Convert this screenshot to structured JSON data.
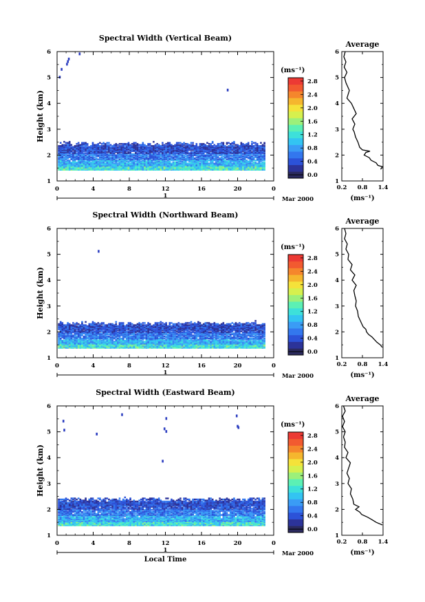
{
  "chart_data": {
    "type": "heatmap",
    "xlabel": "Local Time",
    "date_label": "Mar 2000",
    "day_label": "1",
    "x_ticks": [
      "0",
      "4",
      "8",
      "12",
      "16",
      "20",
      "0"
    ],
    "xlim": [
      0,
      24
    ],
    "y_ticks": [
      "1",
      "2",
      "3",
      "4",
      "5",
      "6"
    ],
    "ylim": [
      1,
      6
    ],
    "ylabel": "Height (km)",
    "colorbar": {
      "unit": "(ms⁻¹)",
      "ticks": [
        "0.0",
        "0.4",
        "0.8",
        "1.2",
        "1.6",
        "2.0",
        "2.4",
        "2.8"
      ],
      "range": [
        0,
        3.0
      ],
      "colors": [
        "#2b2a5e",
        "#2c3399",
        "#2c52d8",
        "#3377ee",
        "#3a9cf5",
        "#33c4f2",
        "#3de0da",
        "#5cf0b4",
        "#9cf07a",
        "#d6f04e",
        "#f5e23a",
        "#f5b62e",
        "#f5862c",
        "#f25a30",
        "#ec3a34"
      ]
    },
    "panels": [
      {
        "title": "Spectral Width (Vertical Beam)",
        "layer_top_km": 2.45,
        "layer_base_km": 1.4,
        "sparse_points": [
          [
            0.2,
            5.0
          ],
          [
            0.4,
            5.3
          ],
          [
            1.0,
            5.5
          ],
          [
            1.1,
            5.6
          ],
          [
            1.2,
            5.7
          ],
          [
            2.4,
            5.9
          ],
          [
            18.8,
            4.5
          ]
        ],
        "profile": {
          "title": "Average",
          "xlabel": "(ms⁻¹)",
          "x_ticks": [
            "0.2",
            "0.8",
            "1.4"
          ],
          "xlim": [
            0.2,
            1.4
          ],
          "y_ticks": [
            "1",
            "2",
            "3",
            "4",
            "5",
            "6"
          ],
          "height_km": [
            1.45,
            1.55,
            1.6,
            1.7,
            1.8,
            1.9,
            2.0,
            2.1,
            2.15,
            2.2,
            2.3,
            2.5,
            2.7,
            2.9,
            3.0,
            3.2,
            3.4,
            3.6,
            3.8,
            4.0,
            4.2,
            4.5,
            4.8,
            5.0,
            5.2,
            5.4,
            5.6,
            5.8,
            6.0
          ],
          "value": [
            1.33,
            1.38,
            1.25,
            1.2,
            1.05,
            1.0,
            0.85,
            0.9,
            1.02,
            0.8,
            0.72,
            0.67,
            0.6,
            0.56,
            0.52,
            0.58,
            0.5,
            0.62,
            0.55,
            0.48,
            0.35,
            0.42,
            0.32,
            0.28,
            0.35,
            0.27,
            0.32,
            0.26,
            0.3
          ]
        }
      },
      {
        "title": "Spectral Width (Northward Beam)",
        "layer_top_km": 2.35,
        "layer_base_km": 1.35,
        "sparse_points": [
          [
            4.5,
            5.1
          ]
        ],
        "profile": {
          "title": "Average",
          "xlabel": "(ms⁻¹)",
          "x_ticks": [
            "0.2",
            "0.8",
            "1.4"
          ],
          "xlim": [
            0.2,
            1.4
          ],
          "y_ticks": [
            "1",
            "2",
            "3",
            "4",
            "5",
            "6"
          ],
          "height_km": [
            1.4,
            1.5,
            1.6,
            1.7,
            1.8,
            1.9,
            2.0,
            2.1,
            2.2,
            2.4,
            2.6,
            2.8,
            3.0,
            3.2,
            3.4,
            3.6,
            3.8,
            4.0,
            4.2,
            4.4,
            4.6,
            4.8,
            5.0,
            5.2,
            5.4,
            5.6,
            5.8,
            6.0
          ],
          "value": [
            1.38,
            1.32,
            1.22,
            1.15,
            1.08,
            0.98,
            0.92,
            0.9,
            0.82,
            0.75,
            0.68,
            0.66,
            0.6,
            0.62,
            0.58,
            0.55,
            0.62,
            0.5,
            0.58,
            0.45,
            0.5,
            0.38,
            0.4,
            0.32,
            0.36,
            0.28,
            0.32,
            0.28
          ]
        }
      },
      {
        "title": "Spectral Width (Eastward Beam)",
        "layer_top_km": 2.4,
        "layer_base_km": 1.35,
        "sparse_points": [
          [
            0.6,
            5.4
          ],
          [
            0.7,
            5.05
          ],
          [
            4.3,
            4.9
          ],
          [
            7.1,
            5.65
          ],
          [
            11.6,
            3.85
          ],
          [
            11.8,
            5.1
          ],
          [
            12.0,
            5.0
          ],
          [
            12.0,
            5.5
          ],
          [
            19.8,
            5.6
          ],
          [
            19.9,
            5.2
          ],
          [
            20.0,
            5.15
          ]
        ],
        "profile": {
          "title": "Average",
          "xlabel": "(ms⁻¹)",
          "x_ticks": [
            "0.2",
            "0.8",
            "1.4"
          ],
          "xlim": [
            0.2,
            1.4
          ],
          "y_ticks": [
            "1",
            "2",
            "3",
            "4",
            "5",
            "6"
          ],
          "height_km": [
            1.4,
            1.5,
            1.6,
            1.7,
            1.8,
            1.9,
            2.0,
            2.1,
            2.2,
            2.4,
            2.6,
            2.8,
            3.0,
            3.2,
            3.4,
            3.6,
            3.8,
            4.0,
            4.2,
            4.4,
            4.6,
            4.8,
            5.0,
            5.2,
            5.4,
            5.6,
            5.8,
            6.0
          ],
          "value": [
            1.38,
            1.2,
            1.08,
            0.95,
            0.78,
            0.72,
            0.6,
            0.7,
            0.55,
            0.52,
            0.45,
            0.48,
            0.38,
            0.42,
            0.35,
            0.4,
            0.45,
            0.32,
            0.38,
            0.28,
            0.3,
            0.25,
            0.3,
            0.22,
            0.28,
            0.22,
            0.3,
            0.25
          ]
        }
      }
    ]
  }
}
